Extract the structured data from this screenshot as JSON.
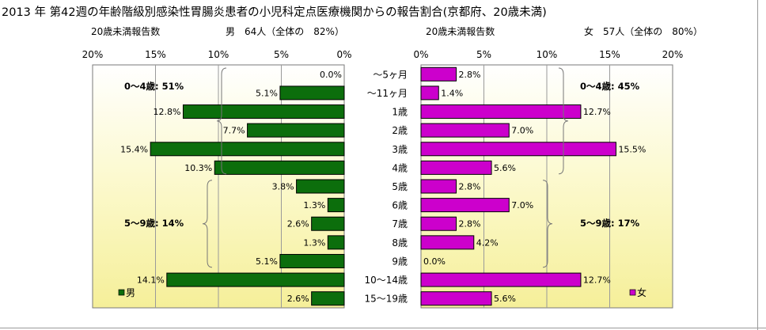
{
  "chart_data": {
    "type": "bar",
    "title": "2013 年 第42週の年齢階級別感染性胃腸炎患者の小児科定点医療機関からの報告割合(京都府、20歳未満)",
    "categories": [
      "～5ヶ月",
      "～11ヶ月",
      "1歳",
      "2歳",
      "3歳",
      "4歳",
      "5歳",
      "6歳",
      "7歳",
      "8歳",
      "9歳",
      "10～14歳",
      "15～19歳"
    ],
    "xlim": [
      0,
      20
    ],
    "ticks": [
      "20%",
      "15%",
      "10%",
      "5%",
      "0%"
    ],
    "ticks_right": [
      "0%",
      "5%",
      "10%",
      "15%",
      "20%"
    ],
    "series": [
      {
        "name": "男",
        "header_left": "20歳未満報告数",
        "header_right": "男　64人（全体の　82%）",
        "color": "#0c6e0c",
        "values": [
          0.0,
          5.1,
          12.8,
          7.7,
          15.4,
          10.3,
          3.8,
          1.3,
          2.6,
          1.3,
          5.1,
          14.1,
          2.6
        ],
        "labels": [
          "0.0%",
          "5.1%",
          "12.8%",
          "7.7%",
          "15.4%",
          "10.3%",
          "3.8%",
          "1.3%",
          "2.6%",
          "1.3%",
          "5.1%",
          "14.1%",
          "2.6%"
        ],
        "group_labels": [
          "0～4歳: 51%",
          "5～9歳: 14%"
        ]
      },
      {
        "name": "女",
        "header_left": "20歳未満報告数",
        "header_right": "女　57人（全体の　80%）",
        "color": "#cc00cc",
        "values": [
          2.8,
          1.4,
          12.7,
          7.0,
          15.5,
          5.6,
          2.8,
          7.0,
          2.8,
          4.2,
          0.0,
          12.7,
          5.6
        ],
        "labels": [
          "2.8%",
          "1.4%",
          "12.7%",
          "7.0%",
          "15.5%",
          "5.6%",
          "2.8%",
          "7.0%",
          "2.8%",
          "4.2%",
          "0.0%",
          "12.7%",
          "5.6%"
        ],
        "group_labels": [
          "0～4歳: 45%",
          "5～9歳: 17%"
        ]
      }
    ]
  }
}
